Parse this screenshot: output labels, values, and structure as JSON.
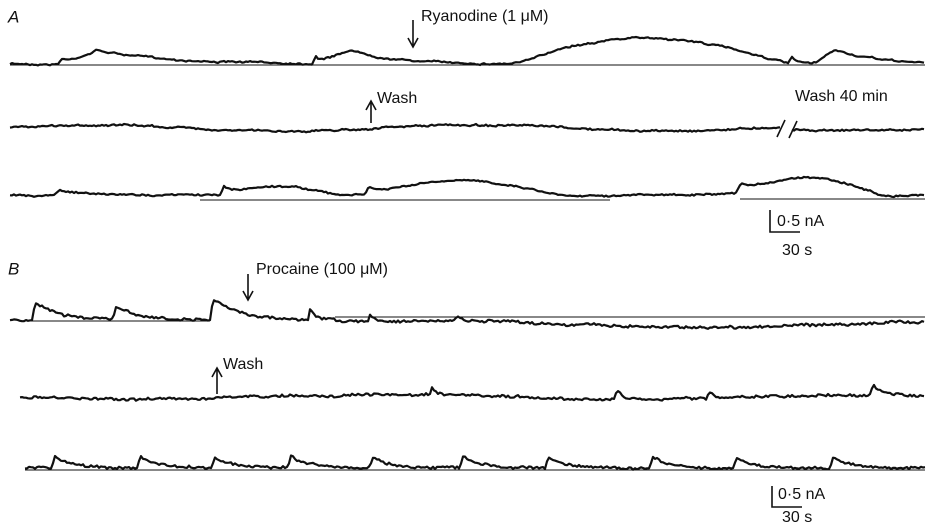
{
  "panels": [
    {
      "label": "A",
      "annotations": [
        "Ryanodine (1 μM)",
        "Wash",
        "Wash 40 min"
      ],
      "scale_bar": {
        "current": "0·5 nA",
        "time": "30 s"
      }
    },
    {
      "label": "B",
      "annotations": [
        "Procaine (100 μM)",
        "Wash"
      ],
      "scale_bar": {
        "current": "0·5 nA",
        "time": "30 s"
      }
    }
  ]
}
